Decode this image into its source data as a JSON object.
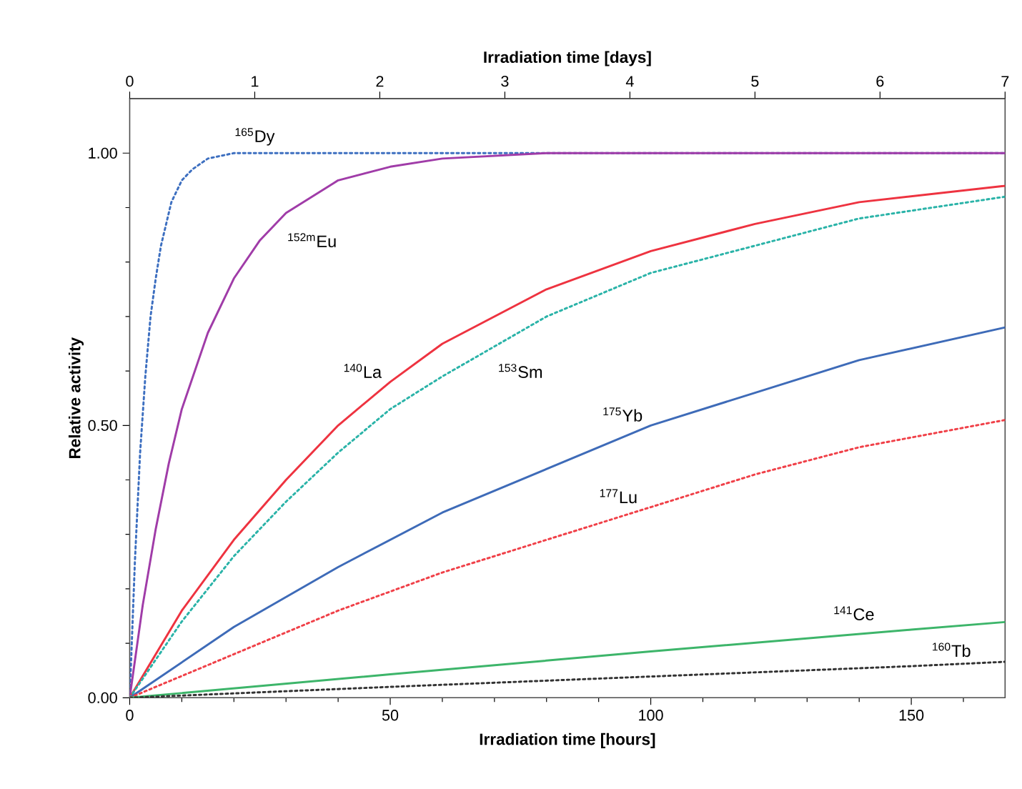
{
  "chart_data": {
    "type": "line",
    "xlabel": "Irradiation time [hours]",
    "x2label": "Irradiation time [days]",
    "ylabel": "Relative activity",
    "xlim": [
      0,
      168
    ],
    "ylim": [
      0,
      1.1
    ],
    "x2lim": [
      0,
      7
    ],
    "xticks": [
      0,
      {
        "value": 10,
        "label": null
      },
      {
        "value": 20,
        "label": null
      },
      {
        "value": 30,
        "label": null
      },
      {
        "value": 40,
        "label": null
      },
      50,
      {
        "value": 60,
        "label": null
      },
      {
        "value": 70,
        "label": null
      },
      {
        "value": 80,
        "label": null
      },
      {
        "value": 90,
        "label": null
      },
      100,
      {
        "value": 110,
        "label": null
      },
      {
        "value": 120,
        "label": null
      },
      {
        "value": 130,
        "label": null
      },
      {
        "value": 140,
        "label": null
      },
      150,
      {
        "value": 160,
        "label": null
      }
    ],
    "yticks": [
      {
        "value": 0,
        "label": "0.00"
      },
      {
        "value": 0.1,
        "label": null
      },
      {
        "value": 0.2,
        "label": null
      },
      {
        "value": 0.3,
        "label": null
      },
      {
        "value": 0.4,
        "label": null
      },
      {
        "value": 0.5,
        "label": "0.50"
      },
      {
        "value": 0.6,
        "label": null
      },
      {
        "value": 0.7,
        "label": null
      },
      {
        "value": 0.8,
        "label": null
      },
      {
        "value": 0.9,
        "label": null
      },
      {
        "value": 1.0,
        "label": "1.00"
      }
    ],
    "x2ticks": [
      0,
      1,
      2,
      3,
      4,
      5,
      6,
      7
    ],
    "marker": "none",
    "series": [
      {
        "name": "$^{165}$Dy",
        "color": "#3d6fc0",
        "line_style": "dotted",
        "x": [
          0,
          1,
          2,
          3,
          4,
          5,
          6,
          8,
          10,
          12,
          15,
          20,
          30,
          168
        ],
        "values": [
          0,
          0.25,
          0.45,
          0.59,
          0.7,
          0.77,
          0.83,
          0.91,
          0.95,
          0.97,
          0.99,
          1.0,
          1.0,
          1.0
        ]
      },
      {
        "name": "$^{152m}$Eu",
        "color": "#a03ca8",
        "line_style": "solid",
        "x": [
          0,
          2.5,
          5,
          7.5,
          10,
          15,
          20,
          25,
          30,
          40,
          50,
          60,
          80,
          168
        ],
        "values": [
          0,
          0.17,
          0.31,
          0.43,
          0.53,
          0.67,
          0.77,
          0.84,
          0.89,
          0.95,
          0.975,
          0.99,
          1.0,
          1.0
        ]
      },
      {
        "name": "$^{140}$La",
        "color": "#ee3340",
        "line_style": "solid",
        "x": [
          0,
          10,
          20,
          30,
          40,
          50,
          60,
          80,
          100,
          120,
          140,
          168
        ],
        "values": [
          0,
          0.16,
          0.29,
          0.4,
          0.5,
          0.58,
          0.65,
          0.75,
          0.82,
          0.87,
          0.91,
          0.94
        ]
      },
      {
        "name": "$^{153}$Sm",
        "color": "#2ab3a8",
        "line_style": "dotted",
        "x": [
          0,
          10,
          20,
          30,
          40,
          50,
          60,
          80,
          100,
          120,
          140,
          168
        ],
        "values": [
          0,
          0.14,
          0.26,
          0.36,
          0.45,
          0.53,
          0.59,
          0.7,
          0.78,
          0.83,
          0.88,
          0.92
        ]
      },
      {
        "name": "$^{175}$Yb",
        "color": "#3e6bb8",
        "line_style": "solid",
        "x": [
          0,
          20,
          40,
          60,
          80,
          100,
          120,
          140,
          168
        ],
        "values": [
          0,
          0.13,
          0.24,
          0.34,
          0.42,
          0.5,
          0.56,
          0.62,
          0.68
        ]
      },
      {
        "name": "$^{177}$Lu",
        "color": "#f04048",
        "line_style": "dotted",
        "x": [
          0,
          20,
          40,
          60,
          80,
          100,
          120,
          140,
          168
        ],
        "values": [
          0,
          0.08,
          0.16,
          0.23,
          0.29,
          0.35,
          0.41,
          0.46,
          0.51
        ]
      },
      {
        "name": "$^{141}$Ce",
        "color": "#3db56a",
        "line_style": "solid",
        "x": [
          0,
          50,
          100,
          150,
          168
        ],
        "values": [
          0,
          0.043,
          0.085,
          0.125,
          0.139
        ]
      },
      {
        "name": "$^{160}$Tb",
        "color": "#333333",
        "line_style": "dotted",
        "x": [
          0,
          50,
          100,
          150,
          168
        ],
        "values": [
          0,
          0.02,
          0.039,
          0.058,
          0.066
        ]
      }
    ]
  }
}
